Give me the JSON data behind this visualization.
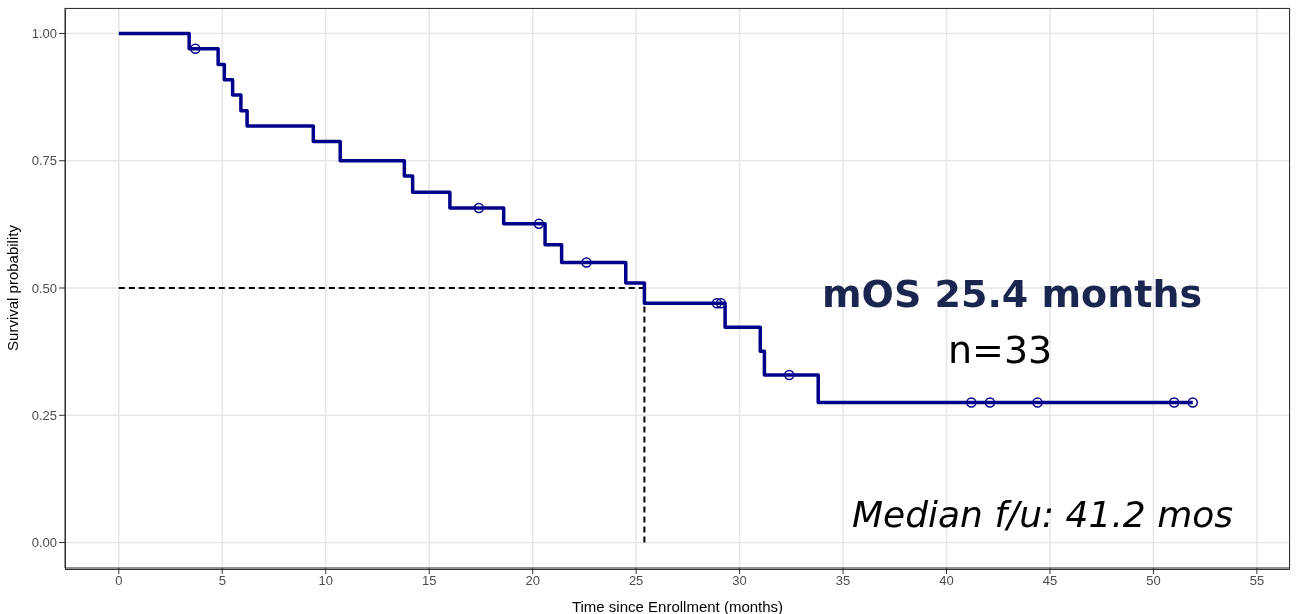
{
  "chart_data": {
    "type": "step",
    "xlabel": "Time since Enrollment (months)",
    "ylabel": "Survival probability",
    "xlim": [
      -2.6,
      56.6
    ],
    "ylim": [
      -0.05,
      1.05
    ],
    "xticks": [
      0,
      5,
      10,
      15,
      20,
      25,
      30,
      35,
      40,
      45,
      50,
      55
    ],
    "yticks": [
      {
        "value": 0,
        "label": "0.00"
      },
      {
        "value": 0.25,
        "label": "0.25"
      },
      {
        "value": 0.5,
        "label": "0.50"
      },
      {
        "value": 0.75,
        "label": "0.75"
      },
      {
        "value": 1,
        "label": "1.00"
      }
    ],
    "grid": true,
    "legend": false,
    "series": [
      {
        "color": "#00008b",
        "marker": "none",
        "x": [
          0,
          3.4,
          4.8,
          5.1,
          5.5,
          5.9,
          6.2,
          9.4,
          10.7,
          13.8,
          14.2,
          16.0,
          18.6,
          20.6,
          21.4,
          24.5,
          25.4,
          29.3,
          31.0,
          31.2,
          33.8,
          51.9
        ],
        "values": [
          1.0,
          0.97,
          0.939,
          0.909,
          0.879,
          0.848,
          0.818,
          0.788,
          0.75,
          0.72,
          0.688,
          0.657,
          0.626,
          0.585,
          0.55,
          0.51,
          0.47,
          0.423,
          0.376,
          0.329,
          0.275,
          0.275
        ]
      },
      {
        "type": "scatter",
        "color": "#00008b",
        "marker": "circle",
        "x": [
          3.7,
          17.4,
          20.3,
          22.6,
          28.9,
          29.1,
          32.4,
          41.2,
          42.1,
          44.4,
          51.0,
          51.9
        ],
        "values": [
          0.97,
          0.657,
          0.626,
          0.55,
          0.47,
          0.47,
          0.329,
          0.275,
          0.275,
          0.275,
          0.275,
          0.275
        ]
      }
    ],
    "ref_lines": [
      {
        "axis": "y",
        "value": 0.5,
        "color": "#000000",
        "line_style": "dashed"
      },
      {
        "axis": "x",
        "value": 25.4,
        "color": "#000000",
        "line_style": "dashed"
      }
    ],
    "annotations": [
      "mOS 25.4 months",
      "n=33",
      "Median f/u: 41.2 mos"
    ]
  }
}
